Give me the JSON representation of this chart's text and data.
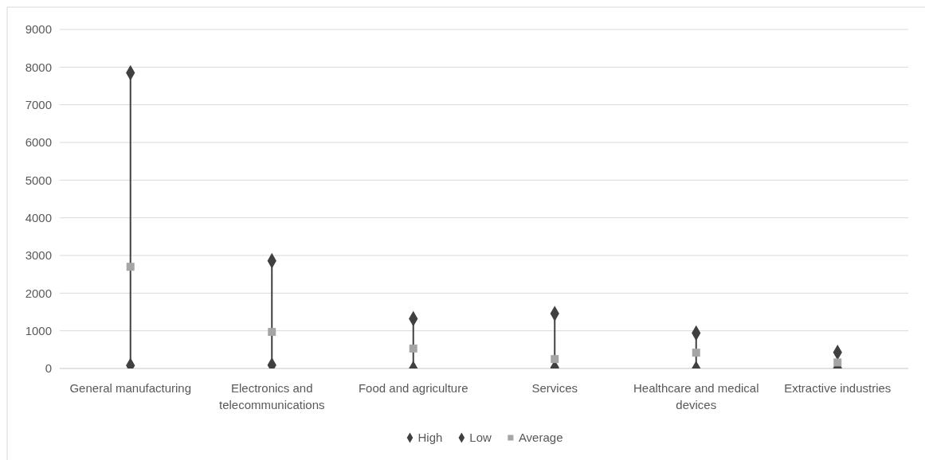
{
  "chart_data": {
    "type": "scatter",
    "categories": [
      "General manufacturing",
      "Electronics and telecommunications",
      "Food and agriculture",
      "Services",
      "Healthcare and medical devices",
      "Extractive industries"
    ],
    "series": [
      {
        "name": "High",
        "color": "#404040",
        "marker": "diamond",
        "values": [
          7850,
          2860,
          1320,
          1460,
          940,
          430
        ]
      },
      {
        "name": "Low",
        "color": "#404040",
        "marker": "diamond",
        "values": [
          80,
          90,
          0,
          20,
          0,
          10
        ]
      },
      {
        "name": "Average",
        "color": "#a5a5a5",
        "marker": "square",
        "values": [
          2700,
          970,
          530,
          250,
          420,
          160
        ]
      }
    ],
    "ylim": [
      0,
      9000
    ],
    "yticks": [
      0,
      1000,
      2000,
      3000,
      4000,
      5000,
      6000,
      7000,
      8000,
      9000
    ],
    "grid": "y",
    "legend": "bottom"
  }
}
